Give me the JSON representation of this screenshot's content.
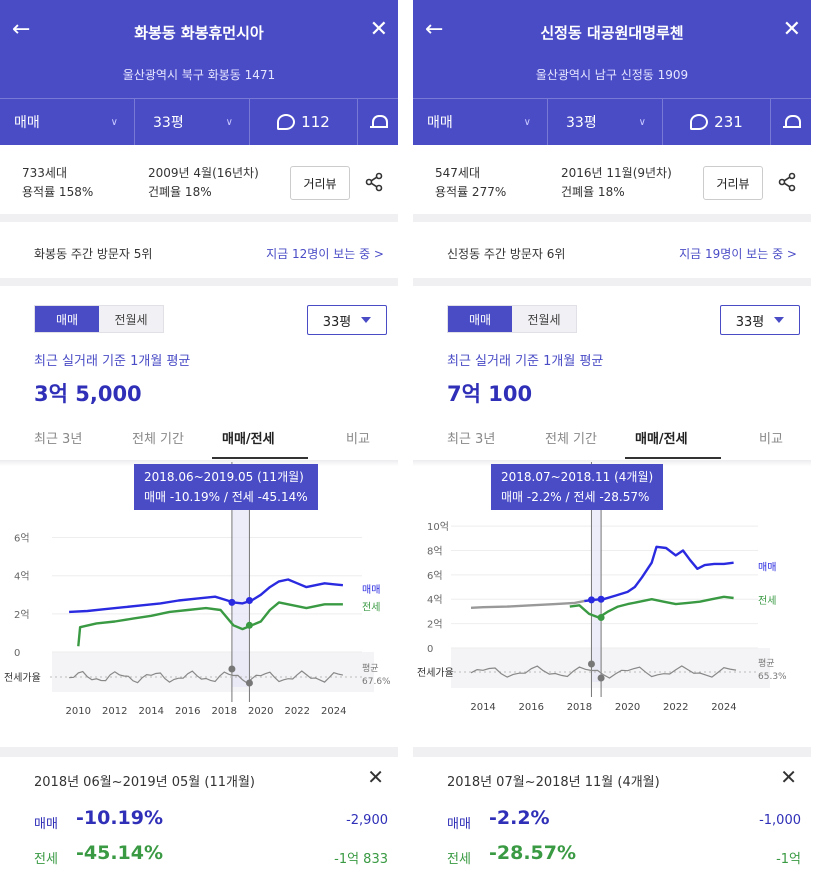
{
  "colors": {
    "header": "#4a4cc6",
    "sale": "#2a2ae0",
    "lease": "#3a9a43",
    "gap": "#777777",
    "highlight": "#4a4cc6"
  },
  "panels": [
    {
      "title": "화봉동 화봉휴먼시아",
      "address": "울산광역시 북구 화봉동 1471",
      "trade_type": "매매",
      "size": "33평",
      "comment_count": "112",
      "households": "733세대",
      "far": "용적률 158%",
      "built": "2009년 4월(16년차)",
      "coverage": "건폐율 18%",
      "street_view": "거리뷰",
      "visit_rank": "화봉동 주간 방문자 5위",
      "viewing_now": "지금 12명이 보는 중 >",
      "toggle": [
        "매매",
        "전월세"
      ],
      "size_select": "33평",
      "avg_caption": "최근 실거래 기준 1개월 평균",
      "avg_price": "3억 5,000",
      "tabs": [
        "최근 3년",
        "전체 기간",
        "매매/전세",
        "비교"
      ],
      "tooltip": {
        "period": "2018.06~2019.05 (11개월)",
        "sale": "매매 -10.19%",
        "sep": "/",
        "lease": "전세 -45.14%"
      },
      "chart_data": {
        "type": "line",
        "x_years": [
          "2010",
          "2012",
          "2014",
          "2016",
          "2018",
          "2020",
          "2022",
          "2024"
        ],
        "y_ticks": [
          "6억",
          "4억",
          "2억",
          "0"
        ],
        "ylim": [
          0,
          6.5
        ],
        "x_range": [
          2009.0,
          2025.0
        ],
        "series": [
          {
            "name": "매매",
            "points": [
              [
                2009.5,
                2.1
              ],
              [
                2010.5,
                2.15
              ],
              [
                2011.5,
                2.25
              ],
              [
                2012.5,
                2.35
              ],
              [
                2013.5,
                2.45
              ],
              [
                2014.5,
                2.55
              ],
              [
                2015.5,
                2.7
              ],
              [
                2016.5,
                2.8
              ],
              [
                2017.5,
                2.9
              ],
              [
                2018.0,
                2.75
              ],
              [
                2018.5,
                2.6
              ],
              [
                2019.0,
                2.55
              ],
              [
                2019.5,
                2.7
              ],
              [
                2020.0,
                3.0
              ],
              [
                2020.5,
                3.4
              ],
              [
                2021.0,
                3.7
              ],
              [
                2021.5,
                3.8
              ],
              [
                2022.0,
                3.6
              ],
              [
                2022.5,
                3.4
              ],
              [
                2023.0,
                3.5
              ],
              [
                2023.5,
                3.6
              ],
              [
                2024.0,
                3.55
              ],
              [
                2024.5,
                3.5
              ]
            ]
          },
          {
            "name": "전세",
            "points": [
              [
                2010.0,
                0.3
              ],
              [
                2010.1,
                1.3
              ],
              [
                2011.0,
                1.5
              ],
              [
                2012.0,
                1.6
              ],
              [
                2013.0,
                1.75
              ],
              [
                2014.0,
                1.9
              ],
              [
                2015.0,
                2.1
              ],
              [
                2016.0,
                2.2
              ],
              [
                2017.0,
                2.3
              ],
              [
                2017.8,
                2.2
              ],
              [
                2018.5,
                1.4
              ],
              [
                2019.0,
                1.2
              ],
              [
                2019.5,
                1.4
              ],
              [
                2020.0,
                1.6
              ],
              [
                2020.5,
                2.2
              ],
              [
                2021.0,
                2.6
              ],
              [
                2021.5,
                2.5
              ],
              [
                2022.0,
                2.4
              ],
              [
                2022.5,
                2.3
              ],
              [
                2023.0,
                2.4
              ],
              [
                2023.5,
                2.5
              ],
              [
                2024.0,
                2.5
              ],
              [
                2024.5,
                2.5
              ]
            ]
          }
        ],
        "gap_label": "전세가율",
        "avg_label": "평균",
        "avg_value": "67.6%",
        "highlight": [
          2018.42,
          2019.38
        ],
        "legend": [
          "매매",
          "전세"
        ]
      },
      "footer": {
        "range": "2018년 06월~2019년 05월 (11개월)",
        "sale_label": "매매",
        "sale_pct": "-10.19%",
        "sale_amt": "-2,900",
        "lease_label": "전세",
        "lease_pct": "-45.14%",
        "lease_amt": "-1억 833"
      }
    },
    {
      "title": "신정동 대공원대명루첸",
      "address": "울산광역시 남구 신정동 1909",
      "trade_type": "매매",
      "size": "33평",
      "comment_count": "231",
      "households": "547세대",
      "far": "용적률 277%",
      "built": "2016년 11월(9년차)",
      "coverage": "건폐율 18%",
      "street_view": "거리뷰",
      "visit_rank": "신정동 주간 방문자 6위",
      "viewing_now": "지금 19명이 보는 중 >",
      "toggle": [
        "매매",
        "전월세"
      ],
      "size_select": "33평",
      "avg_caption": "최근 실거래 기준 1개월 평균",
      "avg_price": "7억 100",
      "tabs": [
        "최근 3년",
        "전체 기간",
        "매매/전세",
        "비교"
      ],
      "tooltip": {
        "period": "2018.07~2018.11 (4개월)",
        "sale": "매매 -2.2%",
        "sep": "/",
        "lease": "전세 -28.57%"
      },
      "chart_data": {
        "type": "line",
        "x_years": [
          "2014",
          "2016",
          "2018",
          "2020",
          "2022",
          "2024"
        ],
        "y_ticks": [
          "10억",
          "8억",
          "6억",
          "4억",
          "2억",
          "0"
        ],
        "ylim": [
          0,
          10.5
        ],
        "x_range": [
          2013.0,
          2025.0
        ],
        "series": [
          {
            "name": "매매",
            "points": [
              [
                2018.2,
                3.85
              ],
              [
                2018.6,
                3.95
              ],
              [
                2019.0,
                4.0
              ],
              [
                2019.5,
                4.3
              ],
              [
                2020.0,
                4.6
              ],
              [
                2020.3,
                5.0
              ],
              [
                2020.6,
                5.8
              ],
              [
                2021.0,
                7.0
              ],
              [
                2021.2,
                8.3
              ],
              [
                2021.6,
                8.2
              ],
              [
                2022.0,
                7.6
              ],
              [
                2022.3,
                8.0
              ],
              [
                2022.6,
                7.2
              ],
              [
                2022.9,
                6.5
              ],
              [
                2023.2,
                6.8
              ],
              [
                2023.6,
                6.9
              ],
              [
                2024.0,
                6.9
              ],
              [
                2024.4,
                7.0
              ]
            ]
          },
          {
            "name": "전세",
            "points": [
              [
                2017.6,
                3.4
              ],
              [
                2018.0,
                3.5
              ],
              [
                2018.4,
                2.8
              ],
              [
                2018.8,
                2.5
              ],
              [
                2019.2,
                3.0
              ],
              [
                2019.6,
                3.4
              ],
              [
                2020.0,
                3.6
              ],
              [
                2020.5,
                3.8
              ],
              [
                2021.0,
                4.0
              ],
              [
                2021.5,
                3.8
              ],
              [
                2022.0,
                3.6
              ],
              [
                2022.5,
                3.7
              ],
              [
                2023.0,
                3.8
              ],
              [
                2023.5,
                4.0
              ],
              [
                2024.0,
                4.2
              ],
              [
                2024.4,
                4.1
              ]
            ]
          },
          {
            "name": "",
            "points": [
              [
                2013.5,
                3.3
              ],
              [
                2014.0,
                3.35
              ],
              [
                2015.0,
                3.4
              ],
              [
                2016.0,
                3.5
              ],
              [
                2017.0,
                3.6
              ],
              [
                2017.8,
                3.7
              ],
              [
                2018.2,
                3.85
              ]
            ]
          }
        ],
        "gap_label": "전세가율",
        "avg_label": "평균",
        "avg_value": "65.3%",
        "highlight": [
          2018.5,
          2018.9
        ],
        "legend": [
          "매매",
          "전세"
        ]
      },
      "footer": {
        "range": "2018년 07월~2018년 11월 (4개월)",
        "sale_label": "매매",
        "sale_pct": "-2.2%",
        "sale_amt": "-1,000",
        "lease_label": "전세",
        "lease_pct": "-28.57%",
        "lease_amt": "-1억"
      }
    }
  ]
}
